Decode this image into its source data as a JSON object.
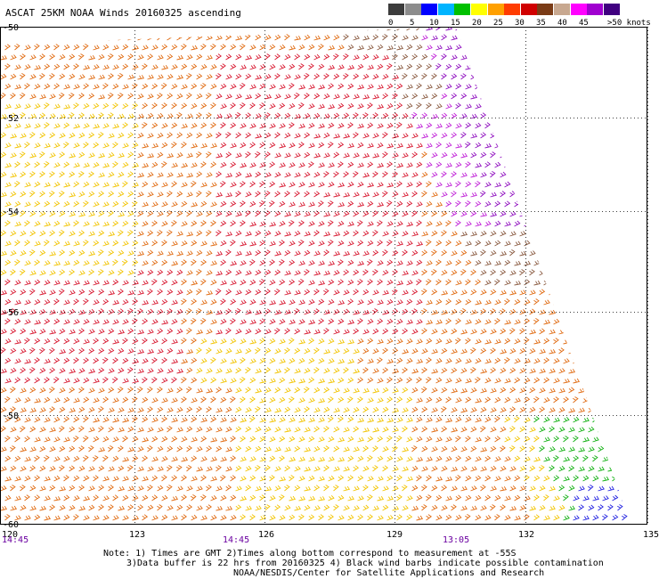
{
  "title": "ASCAT 25KM NOAA Winds 20160325 ascending",
  "legend": {
    "labels": [
      "0",
      "5",
      "10",
      "15",
      "20",
      "25",
      "30",
      "35",
      "40",
      "45",
      ">50 knots"
    ],
    "colors": [
      "#3c3c3c",
      "#8c8c8c",
      "#0000ff",
      "#00b4ff",
      "#00c000",
      "#ffff00",
      "#ffa000",
      "#ff3c00",
      "#d00000",
      "#7a3b16",
      "#c8a890",
      "#ff00ff",
      "#a000d0",
      "#400080"
    ]
  },
  "map": {
    "lat_labels": [
      "-50",
      "-52",
      "-54",
      "-56",
      "-58",
      "-60"
    ],
    "lon_labels": [
      "120",
      "123",
      "126",
      "129",
      "132",
      "135"
    ],
    "time_labels": [
      "14:45",
      "14:45",
      "13:05"
    ],
    "swath_colors": {
      "orange": "#e06a10",
      "red": "#d81830",
      "yellow": "#f2c400",
      "brown": "#8a5a40",
      "magenta": "#c020d8",
      "violet": "#9010c0",
      "green": "#10b010",
      "blue": "#2020e0"
    }
  },
  "notes": {
    "line1": "Note: 1) Times are GMT 2)Times along bottom correspond to measurement at -55S",
    "line2": "3)Data buffer is 22 hrs from 20160325 4) Black wind barbs indicate possible contamination",
    "line3": "NOAA/NESDIS/Center for Satellite Applications and Research"
  }
}
